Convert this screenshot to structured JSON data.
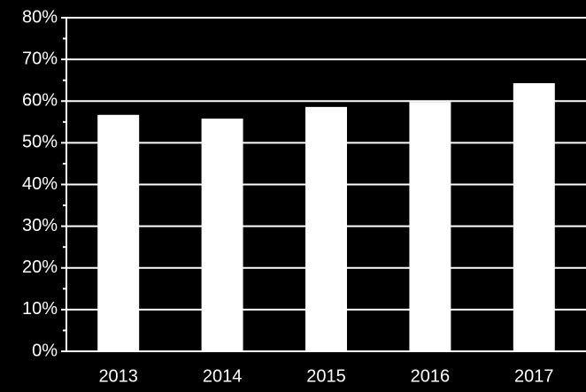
{
  "chart_data": {
    "type": "bar",
    "categories": [
      "2013",
      "2014",
      "2015",
      "2016",
      "2017"
    ],
    "values": [
      56.7,
      55.8,
      58.6,
      59.8,
      64.3
    ],
    "color": "#ffffff",
    "ylim": [
      0,
      80
    ],
    "yticks": [
      {
        "value": 0,
        "label": "0%"
      },
      {
        "value": 10,
        "label": "10%"
      },
      {
        "value": 20,
        "label": "20%"
      },
      {
        "value": 30,
        "label": "30%"
      },
      {
        "value": 40,
        "label": "40%"
      },
      {
        "value": 50,
        "label": "50%"
      },
      {
        "value": 60,
        "label": "60%"
      },
      {
        "value": 70,
        "label": "70%"
      },
      {
        "value": 80,
        "label": "80%"
      }
    ],
    "grid": true
  }
}
